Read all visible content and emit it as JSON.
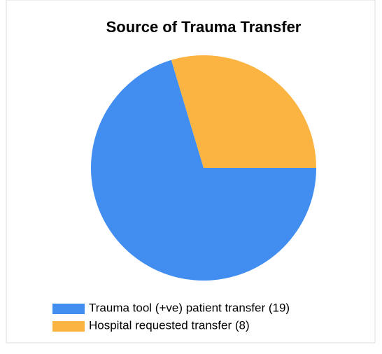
{
  "chart_data": {
    "type": "pie",
    "title": "Source of Trauma Transfer",
    "categories": [
      "Trauma tool (+ve) patient transfer (19)",
      "Hospital requested transfer (8)"
    ],
    "values": [
      19,
      8
    ],
    "colors": [
      "#418ef0",
      "#fbb441"
    ]
  }
}
